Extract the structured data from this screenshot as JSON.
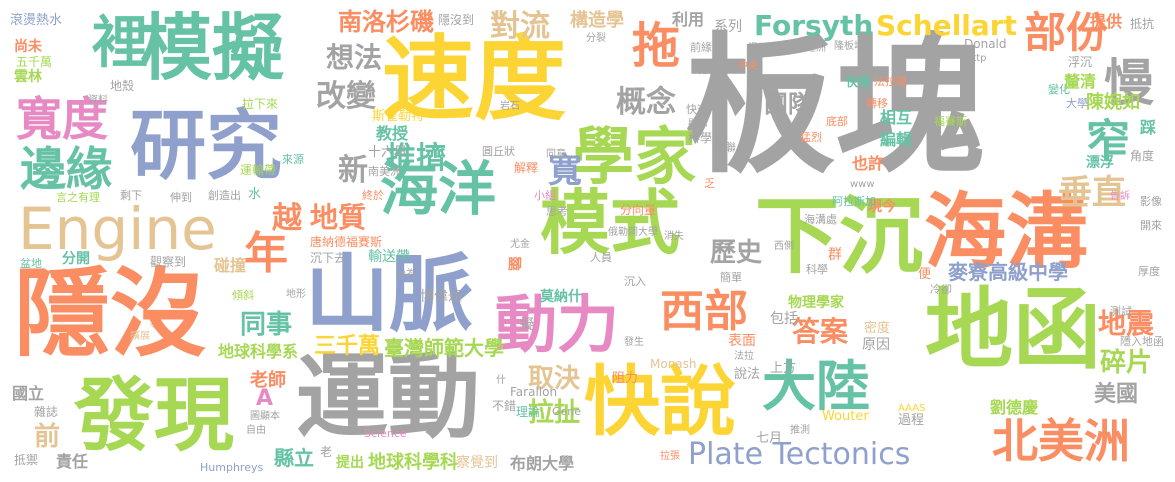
{
  "palette": {
    "gray": "#a3a3a3",
    "yellow": "#fcd535",
    "orange": "#fb8d62",
    "green": "#65c2a5",
    "blue": "#8ea0cb",
    "pink": "#e78ac3",
    "lime": "#a6d854",
    "tan": "#e5c494"
  },
  "words": [
    {
      "text": "板塊",
      "color": "gray"
    },
    {
      "text": "速度",
      "color": "yellow"
    },
    {
      "text": "模擬",
      "color": "green"
    },
    {
      "text": "隱沒",
      "color": "orange"
    },
    {
      "text": "運動",
      "color": "gray"
    },
    {
      "text": "研究",
      "color": "blue"
    },
    {
      "text": "山脈",
      "color": "blue"
    },
    {
      "text": "模式",
      "color": "lime"
    },
    {
      "text": "下沉",
      "color": "lime"
    },
    {
      "text": "地函",
      "color": "lime"
    },
    {
      "text": "海溝",
      "color": "orange"
    },
    {
      "text": "發現",
      "color": "lime"
    },
    {
      "text": "快說",
      "color": "yellow"
    },
    {
      "text": "學家",
      "color": "lime"
    },
    {
      "text": "海洋",
      "color": "green"
    },
    {
      "text": "動力",
      "color": "pink"
    },
    {
      "text": "Engine",
      "color": "tan"
    },
    {
      "text": "寬度",
      "color": "pink"
    },
    {
      "text": "邊緣",
      "color": "green"
    },
    {
      "text": "裡",
      "color": "green"
    },
    {
      "text": "拖",
      "color": "orange"
    },
    {
      "text": "大陸",
      "color": "green"
    },
    {
      "text": "西部",
      "color": "orange"
    },
    {
      "text": "北美洲",
      "color": "orange"
    },
    {
      "text": "Plate Tectonics",
      "color": "blue"
    },
    {
      "text": "Forsyth",
      "color": "green"
    },
    {
      "text": "Schellart",
      "color": "yellow"
    },
    {
      "text": "部份",
      "color": "orange"
    },
    {
      "text": "慢",
      "color": "gray"
    },
    {
      "text": "窄",
      "color": "green"
    },
    {
      "text": "年",
      "color": "orange"
    },
    {
      "text": "南洛杉磯",
      "color": "orange"
    },
    {
      "text": "對流",
      "color": "tan"
    },
    {
      "text": "想法",
      "color": "gray"
    },
    {
      "text": "改變",
      "color": "gray"
    },
    {
      "text": "概念",
      "color": "gray"
    },
    {
      "text": "團隊",
      "color": "gray"
    },
    {
      "text": "推擠",
      "color": "green"
    },
    {
      "text": "地質",
      "color": "orange"
    },
    {
      "text": "越",
      "color": "orange"
    },
    {
      "text": "新",
      "color": "gray"
    },
    {
      "text": "寬",
      "color": "blue"
    },
    {
      "text": "垂直",
      "color": "tan"
    },
    {
      "text": "地震",
      "color": "orange"
    },
    {
      "text": "碎片",
      "color": "lime"
    },
    {
      "text": "美國",
      "color": "gray"
    },
    {
      "text": "同事",
      "color": "green"
    },
    {
      "text": "三千萬",
      "color": "yellow"
    },
    {
      "text": "臺灣師範大學",
      "color": "lime"
    },
    {
      "text": "麥寮高級中學",
      "color": "blue"
    },
    {
      "text": "答案",
      "color": "orange"
    },
    {
      "text": "歷史",
      "color": "gray"
    },
    {
      "text": "取決",
      "color": "tan"
    },
    {
      "text": "拉扯",
      "color": "lime"
    },
    {
      "text": "地球科學系",
      "color": "lime"
    },
    {
      "text": "地球科學科",
      "color": "lime"
    },
    {
      "text": "布朗大學",
      "color": "gray"
    },
    {
      "text": "劉德慶",
      "color": "lime"
    },
    {
      "text": "陳婉如",
      "color": "lime"
    },
    {
      "text": "老師",
      "color": "orange"
    },
    {
      "text": "前",
      "color": "tan"
    },
    {
      "text": "縣立",
      "color": "green"
    },
    {
      "text": "責任",
      "color": "gray"
    },
    {
      "text": "國立",
      "color": "gray"
    },
    {
      "text": "A",
      "color": "pink"
    },
    {
      "text": "構造學",
      "color": "tan"
    },
    {
      "text": "利用",
      "color": "gray"
    },
    {
      "text": "系列",
      "color": "gray"
    },
    {
      "text": "提供",
      "color": "orange"
    },
    {
      "text": "抵抗",
      "color": "gray"
    },
    {
      "text": "滾燙熱水",
      "color": "blue"
    },
    {
      "text": "隱沒到",
      "color": "gray"
    },
    {
      "text": "尚未",
      "color": "orange"
    },
    {
      "text": "五千萬",
      "color": "lime"
    },
    {
      "text": "雲林",
      "color": "lime"
    },
    {
      "text": "地殼",
      "color": "gray"
    },
    {
      "text": "教授",
      "color": "green"
    },
    {
      "text": "斯雀勒特",
      "color": "yellow"
    },
    {
      "text": "十六日",
      "color": "gray"
    },
    {
      "text": "運輸帶",
      "color": "lime"
    },
    {
      "text": "輸送帶",
      "color": "green"
    },
    {
      "text": "沉下去",
      "color": "gray"
    },
    {
      "text": "碰撞",
      "color": "tan"
    },
    {
      "text": "分開",
      "color": "green"
    },
    {
      "text": "觀察到",
      "color": "gray"
    },
    {
      "text": "博偉達",
      "color": "gray"
    },
    {
      "text": "莫納什",
      "color": "green"
    },
    {
      "text": "唐納德福賽斯",
      "color": "orange"
    },
    {
      "text": "物理學家",
      "color": "lime"
    },
    {
      "text": "包括",
      "color": "gray"
    },
    {
      "text": "編輯",
      "color": "green"
    },
    {
      "text": "相互",
      "color": "green"
    },
    {
      "text": "關連",
      "color": "gray"
    },
    {
      "text": "漂浮",
      "color": "green"
    },
    {
      "text": "角度",
      "color": "gray"
    },
    {
      "text": "也許",
      "color": "orange"
    },
    {
      "text": "現今",
      "color": "orange"
    },
    {
      "text": "Monash",
      "color": "tan"
    },
    {
      "text": "Farallon",
      "color": "gray"
    },
    {
      "text": "Wouter",
      "color": "yellow"
    },
    {
      "text": "七月",
      "color": "gray"
    },
    {
      "text": "上方",
      "color": "gray"
    },
    {
      "text": "表面",
      "color": "orange"
    },
    {
      "text": "原因",
      "color": "gray"
    },
    {
      "text": "密度",
      "color": "tan"
    },
    {
      "text": "過程",
      "color": "gray"
    },
    {
      "text": "阻力",
      "color": "orange"
    },
    {
      "text": "說法",
      "color": "gray"
    },
    {
      "text": "理論",
      "color": "green"
    },
    {
      "text": "不錯",
      "color": "gray"
    },
    {
      "text": "提出",
      "color": "lime"
    },
    {
      "text": "察覺到",
      "color": "tan"
    },
    {
      "text": "雜誌",
      "color": "gray"
    },
    {
      "text": "抵禦",
      "color": "gray"
    },
    {
      "text": "Humphreys",
      "color": "blue"
    },
    {
      "text": "Science",
      "color": "pink"
    },
    {
      "text": "Gene",
      "color": "gray"
    },
    {
      "text": "AAAS",
      "color": "yellow"
    },
    {
      "text": "Donald",
      "color": "gray"
    },
    {
      "text": "http",
      "color": "gray"
    },
    {
      "text": "www",
      "color": "gray"
    },
    {
      "text": "隱入地函",
      "color": "gray"
    },
    {
      "text": "測試",
      "color": "gray"
    },
    {
      "text": "厚度",
      "color": "gray"
    },
    {
      "text": "開來",
      "color": "gray"
    },
    {
      "text": "影像",
      "color": "gray"
    },
    {
      "text": "踩",
      "color": "green"
    },
    {
      "text": "大學",
      "color": "blue"
    },
    {
      "text": "變化",
      "color": "green"
    },
    {
      "text": "釐清",
      "color": "lime"
    },
    {
      "text": "浮沉",
      "color": "gray"
    },
    {
      "text": "法拉隆",
      "color": "orange"
    },
    {
      "text": "轉移",
      "color": "orange"
    },
    {
      "text": "快慢",
      "color": "green"
    },
    {
      "text": "內華達洲",
      "color": "gray"
    },
    {
      "text": "隆板塊",
      "color": "gray"
    },
    {
      "text": "滑到",
      "color": "gray"
    },
    {
      "text": "前緣",
      "color": "gray"
    },
    {
      "text": "中央",
      "color": "orange"
    },
    {
      "text": "效應",
      "color": "gray"
    },
    {
      "text": "快速",
      "color": "gray"
    },
    {
      "text": "關聯",
      "color": "gray"
    },
    {
      "text": "底部",
      "color": "orange"
    },
    {
      "text": "猛烈",
      "color": "orange"
    },
    {
      "text": "發表",
      "color": "gray"
    },
    {
      "text": "福賽斯",
      "color": "lime"
    },
    {
      "text": "阿拉斯加",
      "color": "green"
    },
    {
      "text": "告訴",
      "color": "pink"
    },
    {
      "text": "海溝處",
      "color": "gray"
    },
    {
      "text": "西側",
      "color": "gray"
    },
    {
      "text": "群",
      "color": "orange"
    },
    {
      "text": "科學",
      "color": "gray"
    },
    {
      "text": "冷卻",
      "color": "gray"
    },
    {
      "text": "便",
      "color": "orange"
    },
    {
      "text": "法拉",
      "color": "gray"
    },
    {
      "text": "簡單",
      "color": "gray"
    },
    {
      "text": "人員",
      "color": "gray"
    },
    {
      "text": "沉入",
      "color": "gray"
    },
    {
      "text": "消失",
      "color": "gray"
    },
    {
      "text": "俄勒岡大學",
      "color": "gray"
    },
    {
      "text": "尤金",
      "color": "gray"
    },
    {
      "text": "腳",
      "color": "orange"
    },
    {
      "text": "擬",
      "color": "gray"
    },
    {
      "text": "發生",
      "color": "gray"
    },
    {
      "text": "拉張",
      "color": "orange"
    },
    {
      "text": "推測",
      "color": "gray"
    },
    {
      "text": "分向量",
      "color": "orange"
    },
    {
      "text": "思考",
      "color": "gray"
    },
    {
      "text": "小組",
      "color": "pink"
    },
    {
      "text": "解釋",
      "color": "orange"
    },
    {
      "text": "同意",
      "color": "gray"
    },
    {
      "text": "圓丘狀",
      "color": "gray"
    },
    {
      "text": "南美洲",
      "color": "gray"
    },
    {
      "text": "終於",
      "color": "orange"
    },
    {
      "text": "岩石",
      "color": "gray"
    },
    {
      "text": "顯示",
      "color": "gray"
    },
    {
      "text": "科學家",
      "color": "gray"
    },
    {
      "text": "分裂",
      "color": "gray"
    },
    {
      "text": "資料",
      "color": "gray"
    },
    {
      "text": "拉下來",
      "color": "lime"
    },
    {
      "text": "來源",
      "color": "green"
    },
    {
      "text": "創造出",
      "color": "gray"
    },
    {
      "text": "伸到",
      "color": "gray"
    },
    {
      "text": "剩下",
      "color": "gray"
    },
    {
      "text": "言之有理",
      "color": "lime"
    },
    {
      "text": "水",
      "color": "green"
    },
    {
      "text": "盆地",
      "color": "green"
    },
    {
      "text": "分為",
      "color": "gray"
    },
    {
      "text": "地形",
      "color": "gray"
    },
    {
      "text": "傾斜",
      "color": "lime"
    },
    {
      "text": "擴展",
      "color": "tan"
    },
    {
      "text": "事",
      "color": "orange"
    },
    {
      "text": "圖顯本",
      "color": "gray"
    },
    {
      "text": "自由",
      "color": "gray"
    },
    {
      "text": "老",
      "color": "gray"
    },
    {
      "text": "什",
      "color": "gray"
    },
    {
      "text": "乏",
      "color": "orange"
    }
  ]
}
